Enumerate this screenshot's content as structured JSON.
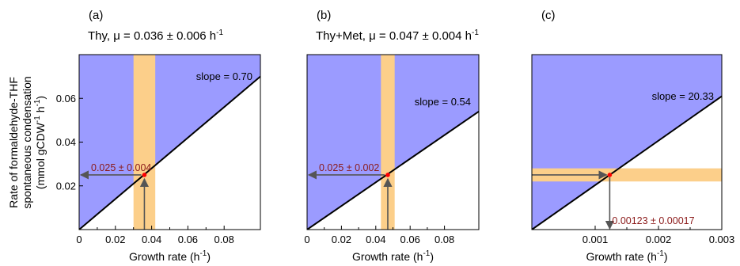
{
  "figure": {
    "ylabel_lines": [
      "Rate of formaldehyde-THF",
      "spontaneous condensation",
      "(mmol gCDW",
      "-1",
      " h",
      "-1",
      ")"
    ]
  },
  "colors": {
    "region": "#9b9bff",
    "band": "#fccf8a",
    "line": "#000000",
    "arrow": "#555555",
    "point": "#ff0000",
    "annotation": "#8b1a1a"
  },
  "chart_data": [
    {
      "type": "line",
      "panel_label": "(a)",
      "title": "Thy, μ = 0.036 ± 0.006 h",
      "title_sup": "-1",
      "xlabel": "Growth rate (h",
      "xlabel_sup": "-1",
      "xlabel_end": ")",
      "xlim": [
        0,
        0.1
      ],
      "ylim": [
        0,
        0.08
      ],
      "x_ticks": [
        0,
        0.02,
        0.04,
        0.06,
        0.08
      ],
      "x_tick_labels": [
        "0",
        "0.02",
        "0.04",
        "0.06",
        "0.08"
      ],
      "y_ticks": [
        0.02,
        0.04,
        0.06
      ],
      "y_tick_labels": [
        "0.02",
        "0.04",
        "0.06"
      ],
      "line_slope": 0.7,
      "slope_label": "slope = 0.70",
      "band": {
        "orientation": "vertical",
        "from": 0.03,
        "to": 0.042
      },
      "point": {
        "x": 0.036,
        "y": 0.025
      },
      "annotation": "0.025 ± 0.004",
      "annotation_axis": "y"
    },
    {
      "type": "line",
      "panel_label": "(b)",
      "title": "Thy+Met, μ = 0.047 ± 0.004 h",
      "title_sup": "-1",
      "xlabel": "Growth rate (h",
      "xlabel_sup": "-1",
      "xlabel_end": ")",
      "xlim": [
        0,
        0.1
      ],
      "ylim": [
        0,
        0.08
      ],
      "x_ticks": [
        0,
        0.02,
        0.04,
        0.06,
        0.08
      ],
      "x_tick_labels": [
        "0",
        "0.02",
        "0.04",
        "0.06",
        "0.08"
      ],
      "y_ticks": [],
      "y_tick_labels": [],
      "line_slope": 0.54,
      "slope_label": "slope = 0.54",
      "band": {
        "orientation": "vertical",
        "from": 0.043,
        "to": 0.051
      },
      "point": {
        "x": 0.047,
        "y": 0.025
      },
      "annotation": "0.025 ± 0.002",
      "annotation_axis": "y"
    },
    {
      "type": "line",
      "panel_label": "(c)",
      "title": "",
      "title_sup": "",
      "xlabel": "Growth rate (h",
      "xlabel_sup": "-1",
      "xlabel_end": ")",
      "xlim": [
        0,
        0.003
      ],
      "ylim": [
        0,
        0.08
      ],
      "x_ticks": [
        0.001,
        0.002,
        0.003
      ],
      "x_tick_labels": [
        "0.001",
        "0.002",
        "0.003"
      ],
      "y_ticks": [],
      "y_tick_labels": [],
      "line_slope": 20.33,
      "slope_label": "slope = 20.33",
      "band": {
        "orientation": "horizontal",
        "from": 0.022,
        "to": 0.028
      },
      "point": {
        "x": 0.00123,
        "y": 0.025
      },
      "annotation": "0.00123 ± 0.00017",
      "annotation_axis": "x"
    }
  ]
}
